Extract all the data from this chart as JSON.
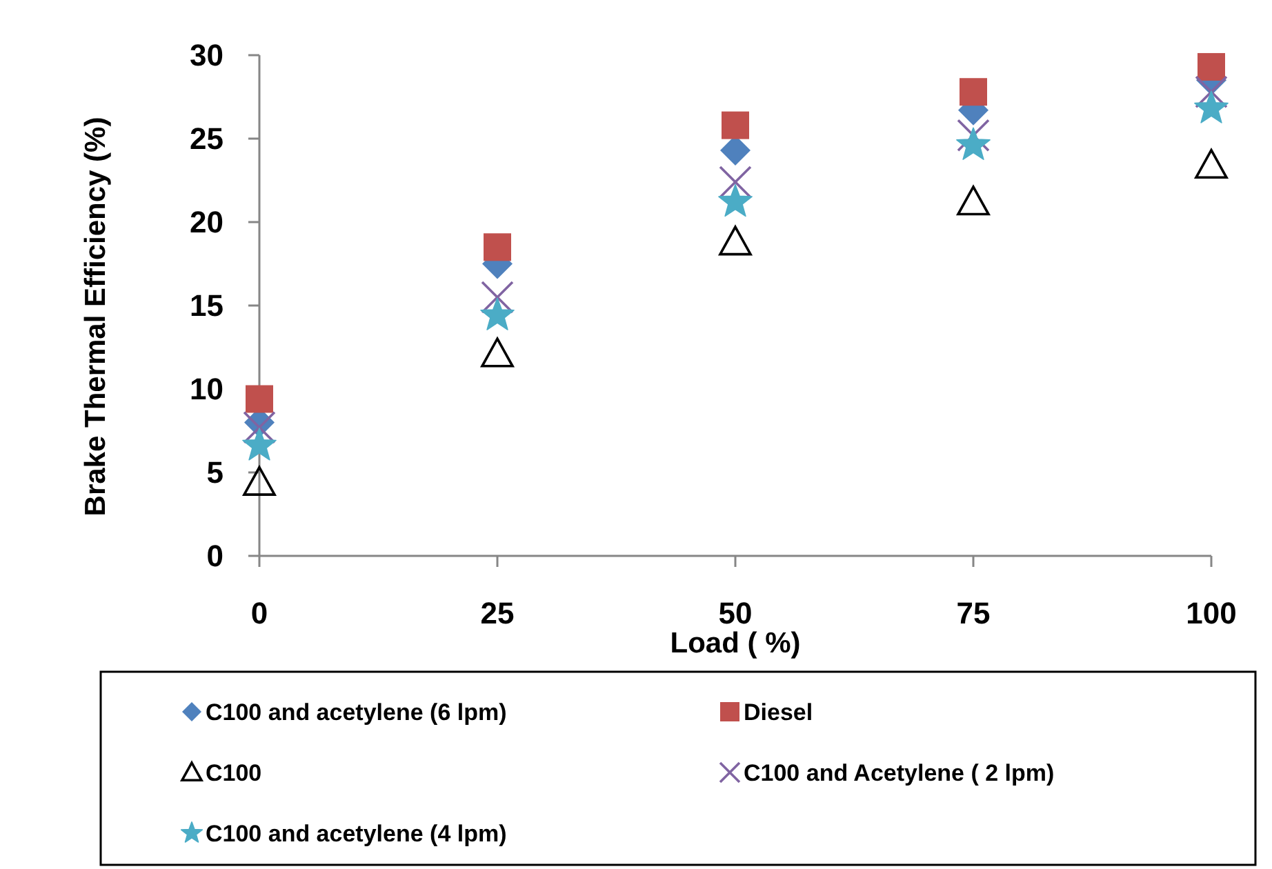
{
  "chart_data": {
    "type": "scatter",
    "xlabel": "Load ( %)",
    "ylabel": "Brake Thermal Efficiency  (%)",
    "x": [
      0,
      25,
      50,
      75,
      100
    ],
    "xlim": [
      0,
      100
    ],
    "xticks": [
      0,
      25,
      50,
      75,
      100
    ],
    "ylim": [
      0,
      30
    ],
    "yticks": [
      0,
      5,
      10,
      15,
      20,
      25,
      30
    ],
    "grid": false,
    "legend": "bottom",
    "series": [
      {
        "name": "C100 and acetylene (6 lpm)",
        "color": "#4f81bd",
        "marker": "diamond",
        "values": [
          8.0,
          17.5,
          24.3,
          26.7,
          28.5
        ]
      },
      {
        "name": "Diesel",
        "color": "#c0504d",
        "marker": "square",
        "values": [
          9.4,
          18.5,
          25.8,
          27.8,
          29.3
        ]
      },
      {
        "name": "C100",
        "color": "#000000",
        "marker": "triangle",
        "values": [
          4.4,
          12.1,
          18.8,
          21.2,
          23.4
        ]
      },
      {
        "name": "C100 and Acetylene ( 2 lpm)",
        "color": "#8064a2",
        "marker": "cross",
        "values": [
          7.7,
          15.5,
          22.4,
          25.2,
          27.8
        ]
      },
      {
        "name": "C100 and acetylene (4 lpm)",
        "color": "#4bacc6",
        "marker": "star",
        "values": [
          6.6,
          14.4,
          21.2,
          24.6,
          26.8
        ]
      }
    ]
  }
}
